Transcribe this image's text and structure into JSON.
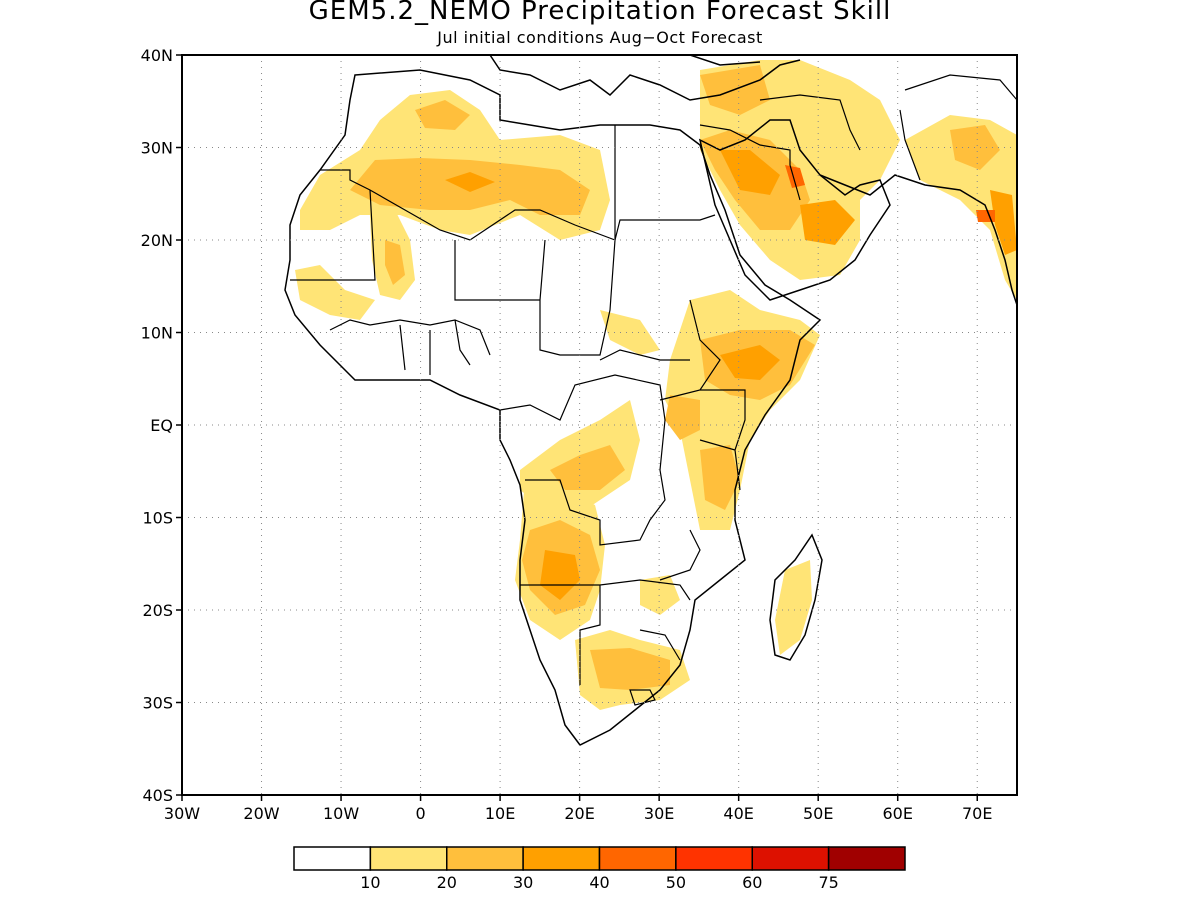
{
  "header": {
    "title": "GEM5.2_NEMO Precipitation Forecast Skill",
    "subtitle": "Jul initial conditions  Aug−Oct Forecast"
  },
  "map": {
    "lon_range": [
      -30,
      75
    ],
    "lat_range": [
      -40,
      40
    ],
    "lat_ticks": [
      {
        "value": 40,
        "label": "40N"
      },
      {
        "value": 30,
        "label": "30N"
      },
      {
        "value": 20,
        "label": "20N"
      },
      {
        "value": 10,
        "label": "10N"
      },
      {
        "value": 0,
        "label": "EQ"
      },
      {
        "value": -10,
        "label": "10S"
      },
      {
        "value": -20,
        "label": "20S"
      },
      {
        "value": -30,
        "label": "30S"
      },
      {
        "value": -40,
        "label": "40S"
      }
    ],
    "lon_ticks": [
      {
        "value": -30,
        "label": "30W"
      },
      {
        "value": -20,
        "label": "20W"
      },
      {
        "value": -10,
        "label": "10W"
      },
      {
        "value": 0,
        "label": "0"
      },
      {
        "value": 10,
        "label": "10E"
      },
      {
        "value": 20,
        "label": "20E"
      },
      {
        "value": 30,
        "label": "30E"
      },
      {
        "value": 40,
        "label": "40E"
      },
      {
        "value": 50,
        "label": "50E"
      },
      {
        "value": 60,
        "label": "60E"
      },
      {
        "value": 70,
        "label": "70E"
      }
    ],
    "gridlines": "dotted"
  },
  "colorbar": {
    "colors": [
      "#ffffff",
      "#ffe476",
      "#ffbf3c",
      "#ffa000",
      "#ff6600",
      "#ff3300",
      "#dd1100",
      "#a00000"
    ],
    "labels": [
      "10",
      "20",
      "30",
      "40",
      "50",
      "60",
      "75"
    ]
  }
}
